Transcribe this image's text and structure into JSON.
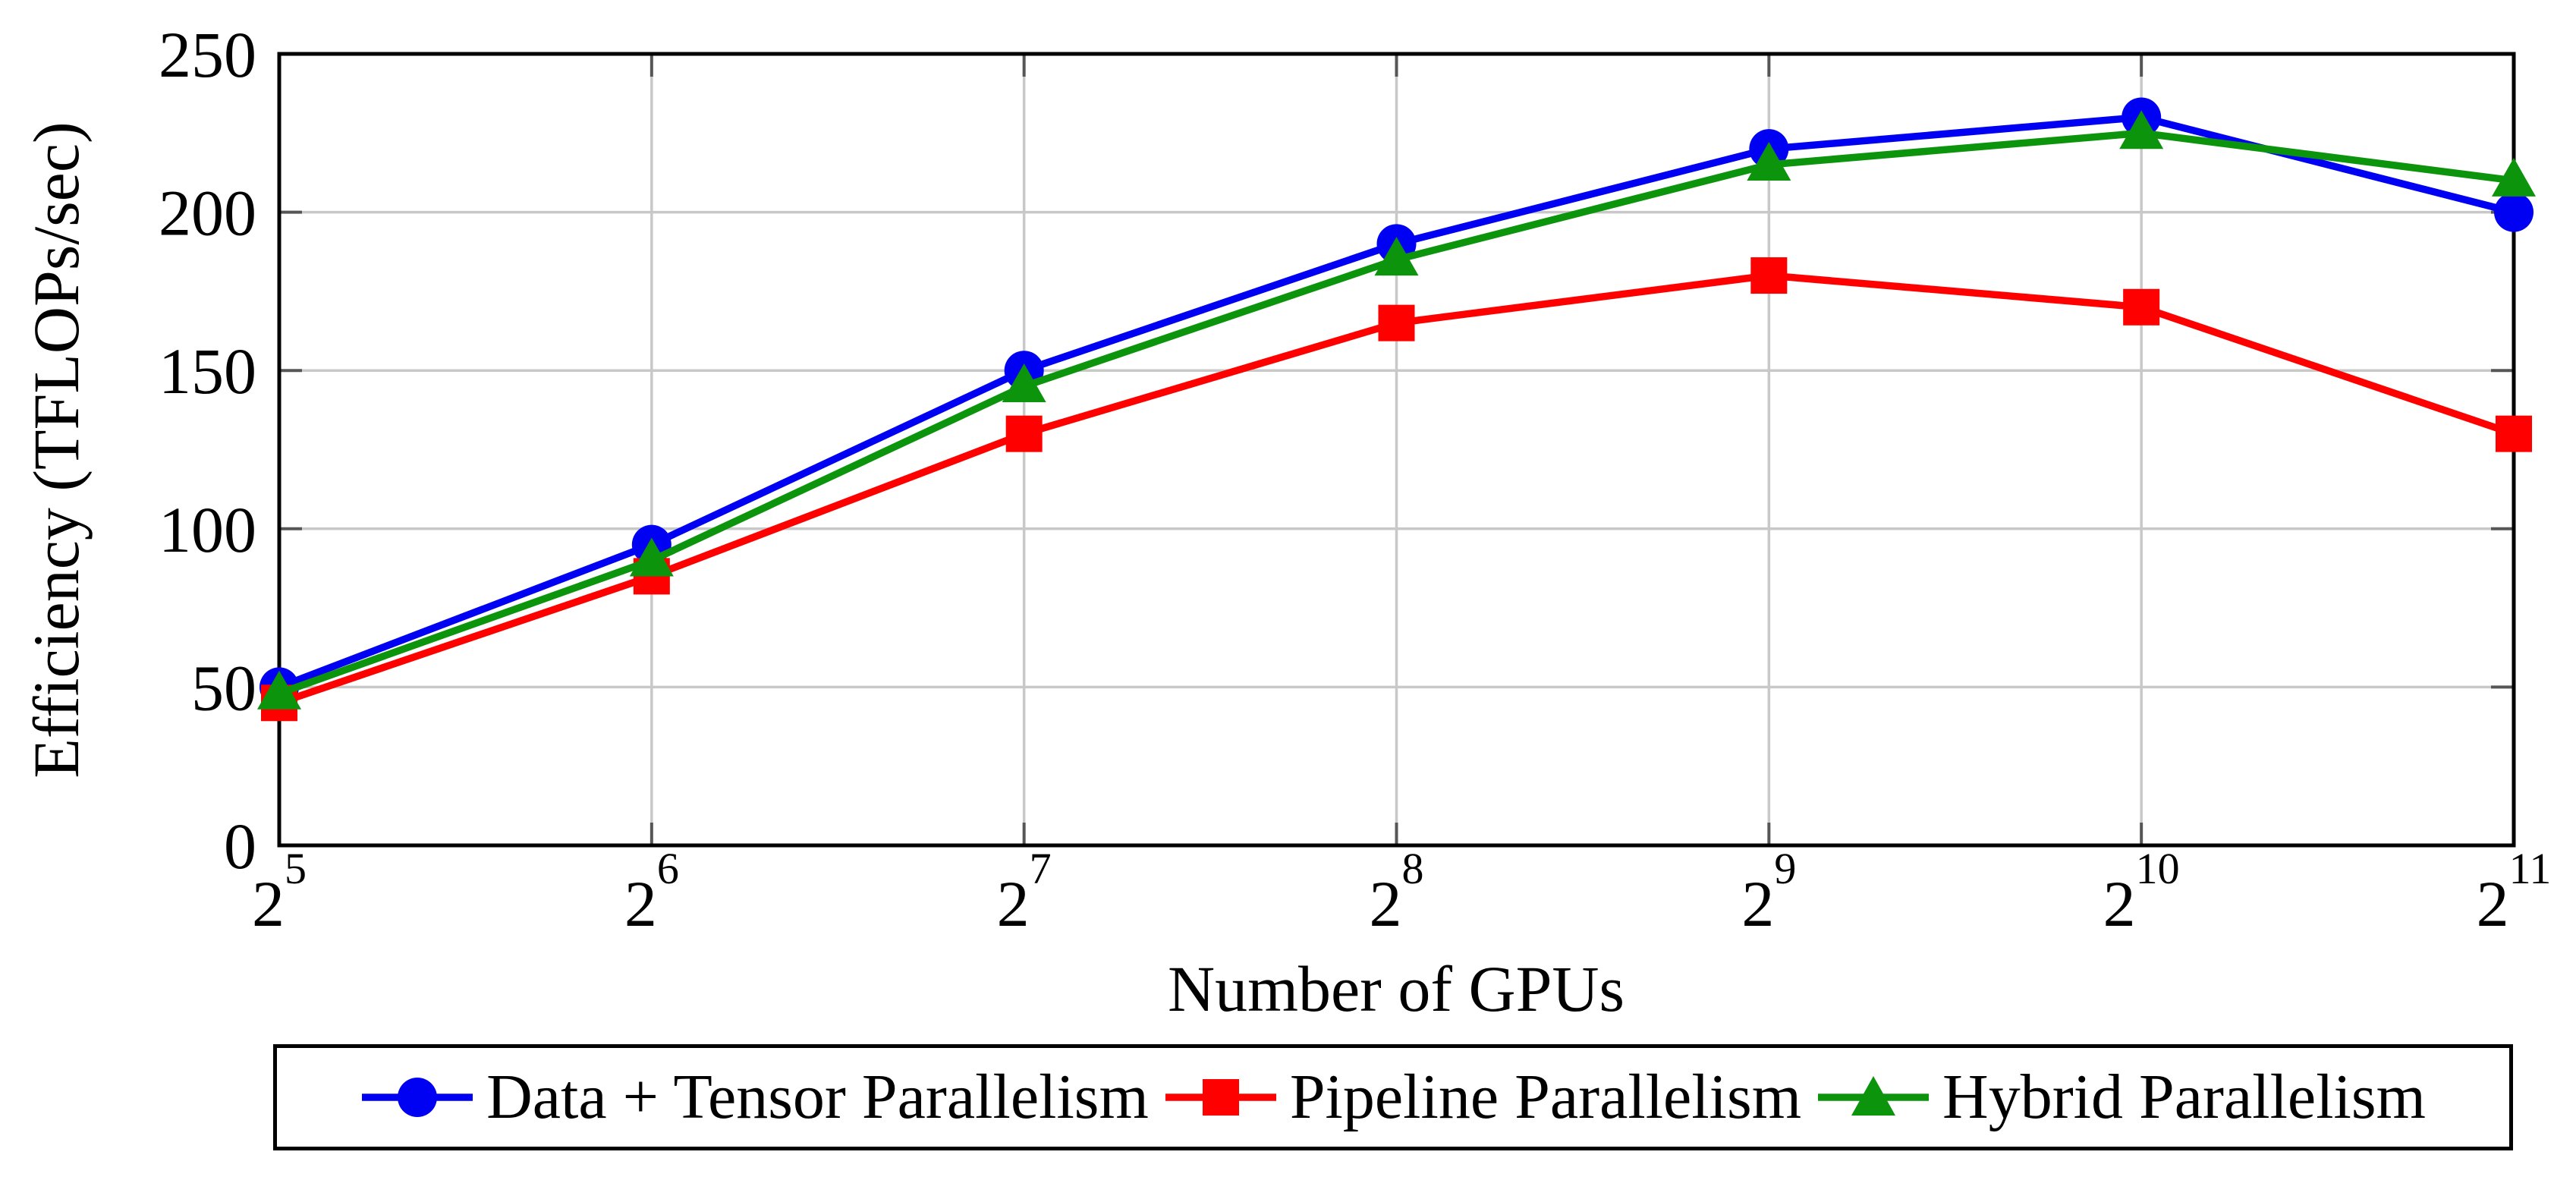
{
  "page": {
    "background": "#ffffff"
  },
  "chart_data": {
    "type": "line",
    "title": "",
    "xlabel": "Number of GPUs",
    "ylabel": "Efficiency (TFLOPs/sec)",
    "x_axis": {
      "scale": "log2",
      "tick_labels": [
        {
          "base": "2",
          "exp": "5"
        },
        {
          "base": "2",
          "exp": "6"
        },
        {
          "base": "2",
          "exp": "7"
        },
        {
          "base": "2",
          "exp": "8"
        },
        {
          "base": "2",
          "exp": "9"
        },
        {
          "base": "2",
          "exp": "10"
        },
        {
          "base": "2",
          "exp": "11"
        }
      ]
    },
    "y_axis": {
      "ticks": [
        0,
        50,
        100,
        150,
        200,
        250
      ],
      "lim": [
        0,
        250
      ]
    },
    "grid": true,
    "legend_position": "below-outside",
    "categories": [
      "2^5",
      "2^6",
      "2^7",
      "2^8",
      "2^9",
      "2^10",
      "2^11"
    ],
    "x_values": [
      32,
      64,
      128,
      256,
      512,
      1024,
      2048
    ],
    "series": [
      {
        "name": "Data + Tensor Parallelism",
        "color": "#0000f2",
        "marker": "circle",
        "values": [
          50,
          95,
          150,
          190,
          220,
          230,
          200
        ]
      },
      {
        "name": "Pipeline Parallelism",
        "color": "#ff0000",
        "marker": "square",
        "values": [
          45,
          85,
          130,
          165,
          180,
          170,
          130
        ]
      },
      {
        "name": "Hybrid Parallelism",
        "color": "#0c950c",
        "marker": "triangle",
        "values": [
          48,
          90,
          145,
          185,
          215,
          225,
          210
        ]
      }
    ],
    "style": {
      "grid_color": "#c8c8c8",
      "axis_color": "#000000",
      "tick_color": "#565656"
    }
  }
}
